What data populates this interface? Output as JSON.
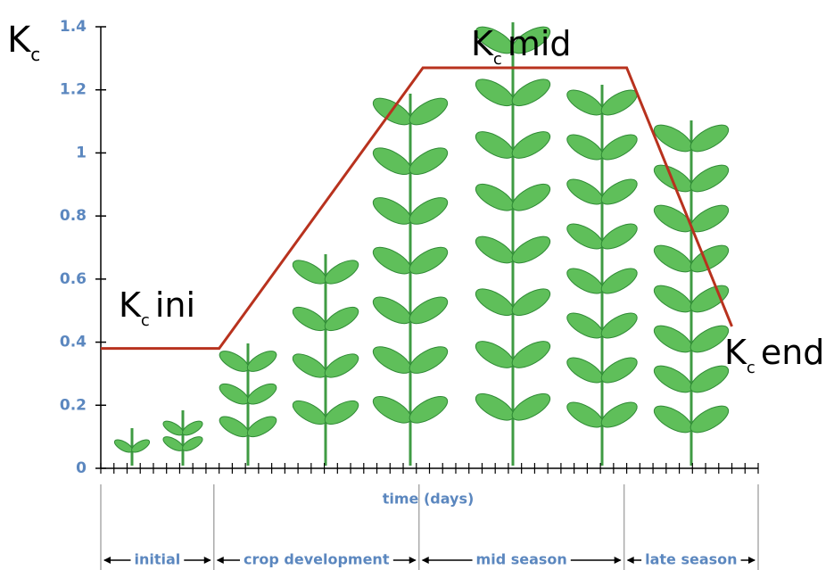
{
  "chart_data": {
    "type": "line",
    "y_label": {
      "main": "K",
      "sub": "c"
    },
    "x_label": "time (days)",
    "xlim": [
      0,
      50
    ],
    "xticks": [
      0,
      1,
      2,
      3,
      4,
      5,
      6,
      7,
      8,
      9,
      10,
      11,
      12,
      13,
      14,
      15,
      16,
      17,
      18,
      19,
      20,
      21,
      22,
      23,
      24,
      25,
      26,
      27,
      28,
      29,
      30,
      31,
      32,
      33,
      34,
      35,
      36,
      37,
      38,
      39,
      40,
      41,
      42,
      43,
      44,
      45,
      46,
      47,
      48,
      49,
      50
    ],
    "ylim": [
      0,
      1.4
    ],
    "yticks": [
      0,
      0.2,
      0.4,
      0.6,
      0.8,
      1,
      1.2,
      1.4
    ],
    "series": [
      {
        "color": "#b8321e",
        "x": [
          0,
          9,
          24.5,
          40,
          48
        ],
        "values": [
          0.38,
          0.38,
          1.27,
          1.27,
          0.45
        ]
      }
    ],
    "annotations": [
      {
        "main": "K",
        "sub": "c",
        "suffix": "ini"
      },
      {
        "main": "K",
        "sub": "c",
        "suffix": "mid"
      },
      {
        "main": "K",
        "sub": "c",
        "suffix": "end"
      }
    ],
    "stages": [
      {
        "name": "initial",
        "start": 0,
        "end": 8.6
      },
      {
        "name": "crop development",
        "start": 8.6,
        "end": 24.2
      },
      {
        "name": "mid season",
        "start": 24.2,
        "end": 39.8
      },
      {
        "name": "late season",
        "start": 39.8,
        "end": 50
      }
    ]
  }
}
